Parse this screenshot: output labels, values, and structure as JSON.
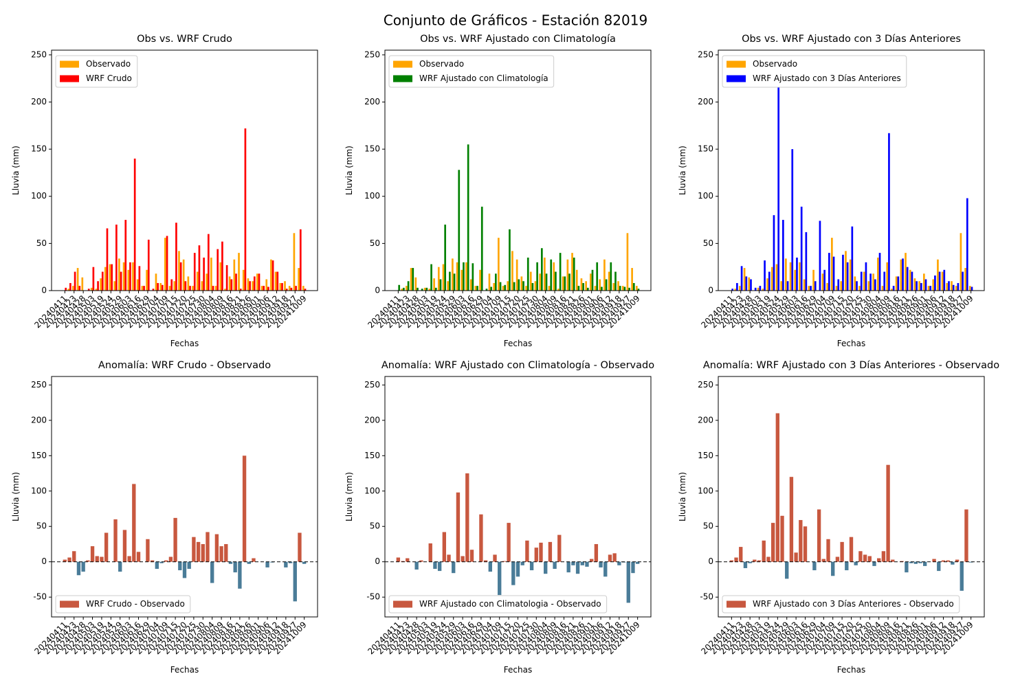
{
  "title": "Conjunto de Gráficos - Estación 82019",
  "chart_data": [
    {
      "type": "bar",
      "title": "Obs vs. WRF Crudo",
      "xlabel": "Fechas",
      "ylabel": "Lluvia (mm)",
      "legend": "upper left",
      "ylim": [
        0,
        255
      ],
      "yticks": [
        0,
        50,
        100,
        150,
        200,
        250
      ],
      "categories": [
        "20240411",
        null,
        "20240423",
        null,
        "20240428",
        null,
        "20240503",
        null,
        "20240519",
        null,
        "20240524",
        null,
        "20240529",
        null,
        "20240603",
        null,
        "20240616",
        null,
        "20240629",
        null,
        "20240704",
        null,
        "20240709",
        null,
        "20240715",
        null,
        "20240720",
        null,
        "20240725",
        null,
        "20240730",
        null,
        "20240804",
        null,
        "20240809",
        null,
        "20240816",
        null,
        "20240821",
        null,
        "20240826",
        null,
        "20240901",
        null,
        "20240906",
        null,
        "20240912",
        null,
        "20240918",
        null,
        "20240927",
        null,
        "20241009"
      ],
      "series": [
        {
          "name": "Observado",
          "color": "#ffa500",
          "values": [
            0,
            2,
            5,
            24,
            14,
            0,
            3,
            2,
            13,
            25,
            28,
            10,
            34,
            30,
            22,
            30,
            12,
            5,
            22,
            0,
            18,
            8,
            56,
            5,
            10,
            42,
            33,
            15,
            5,
            20,
            10,
            18,
            35,
            5,
            30,
            2,
            15,
            33,
            40,
            22,
            13,
            10,
            18,
            5,
            12,
            33,
            20,
            8,
            10,
            5,
            61,
            24,
            5
          ]
        },
        {
          "name": "WRF Crudo",
          "color": "#ff0000",
          "values": [
            3,
            8,
            20,
            5,
            0,
            2,
            25,
            10,
            20,
            66,
            28,
            70,
            20,
            75,
            30,
            140,
            26,
            5,
            54,
            2,
            8,
            6,
            58,
            12,
            72,
            30,
            10,
            5,
            40,
            48,
            35,
            60,
            5,
            44,
            52,
            27,
            12,
            18,
            2,
            172,
            10,
            15,
            18,
            5,
            4,
            32,
            20,
            8,
            2,
            3,
            5,
            65,
            2
          ]
        }
      ]
    },
    {
      "type": "bar",
      "title": "Obs vs. WRF Ajustado con Climatología",
      "xlabel": "Fechas",
      "ylabel": "Lluvia (mm)",
      "legend": "upper left",
      "ylim": [
        0,
        255
      ],
      "yticks": [
        0,
        50,
        100,
        150,
        200,
        250
      ],
      "categories": [
        "20240411",
        null,
        "20240423",
        null,
        "20240428",
        null,
        "20240503",
        null,
        "20240519",
        null,
        "20240524",
        null,
        "20240529",
        null,
        "20240603",
        null,
        "20240616",
        null,
        "20240629",
        null,
        "20240704",
        null,
        "20240709",
        null,
        "20240715",
        null,
        "20240720",
        null,
        "20240725",
        null,
        "20240730",
        null,
        "20240804",
        null,
        "20240809",
        null,
        "20240816",
        null,
        "20240821",
        null,
        "20240826",
        null,
        "20240901",
        null,
        "20240906",
        null,
        "20240912",
        null,
        "20240918",
        null,
        "20240927",
        null,
        "20241009"
      ],
      "series": [
        {
          "name": "Observado",
          "color": "#ffa500",
          "values": [
            0,
            2,
            5,
            24,
            14,
            0,
            3,
            2,
            13,
            25,
            28,
            10,
            34,
            30,
            22,
            30,
            12,
            5,
            22,
            0,
            18,
            8,
            56,
            5,
            10,
            42,
            33,
            15,
            5,
            20,
            10,
            18,
            35,
            5,
            30,
            2,
            15,
            33,
            40,
            22,
            13,
            10,
            18,
            5,
            12,
            33,
            20,
            8,
            10,
            5,
            61,
            24,
            5
          ]
        },
        {
          "name": "WRF Ajustado con Climatología",
          "color": "#008000",
          "values": [
            6,
            3,
            10,
            24,
            3,
            2,
            3,
            28,
            3,
            12,
            70,
            20,
            18,
            128,
            30,
            155,
            29,
            5,
            89,
            2,
            4,
            18,
            9,
            6,
            65,
            9,
            12,
            10,
            35,
            8,
            30,
            45,
            18,
            33,
            20,
            40,
            15,
            18,
            35,
            5,
            8,
            3,
            22,
            30,
            4,
            12,
            30,
            20,
            5,
            4,
            3,
            8,
            2
          ]
        }
      ]
    },
    {
      "type": "bar",
      "title": "Obs vs. WRF Ajustado con 3 Días Anteriores",
      "xlabel": "Fechas",
      "ylabel": "Lluvia (mm)",
      "legend": "upper left",
      "ylim": [
        0,
        255
      ],
      "yticks": [
        0,
        50,
        100,
        150,
        200,
        250
      ],
      "categories": [
        "20240411",
        null,
        "20240423",
        null,
        "20240428",
        null,
        "20240503",
        null,
        "20240519",
        null,
        "20240524",
        null,
        "20240529",
        null,
        "20240603",
        null,
        "20240616",
        null,
        "20240629",
        null,
        "20240704",
        null,
        "20240709",
        null,
        "20240715",
        null,
        "20240720",
        null,
        "20240725",
        null,
        "20240730",
        null,
        "20240804",
        null,
        "20240809",
        null,
        "20240816",
        null,
        "20240821",
        null,
        "20240826",
        null,
        "20240901",
        null,
        "20240906",
        null,
        "20240912",
        null,
        "20240918",
        null,
        "20240927",
        null,
        "20241009"
      ],
      "series": [
        {
          "name": "Observado",
          "color": "#ffa500",
          "values": [
            0,
            2,
            5,
            24,
            14,
            0,
            3,
            2,
            13,
            25,
            28,
            10,
            34,
            30,
            22,
            30,
            12,
            5,
            22,
            0,
            18,
            8,
            56,
            5,
            10,
            42,
            33,
            15,
            5,
            20,
            10,
            18,
            35,
            5,
            30,
            2,
            15,
            33,
            40,
            22,
            13,
            10,
            18,
            5,
            12,
            33,
            20,
            8,
            10,
            5,
            61,
            24,
            5
          ]
        },
        {
          "name": "WRF Ajustado con 3 Días Anteriores",
          "color": "#0000ff",
          "values": [
            2,
            8,
            26,
            15,
            12,
            3,
            5,
            32,
            20,
            80,
            238,
            75,
            10,
            150,
            35,
            89,
            62,
            5,
            10,
            74,
            22,
            40,
            36,
            12,
            38,
            30,
            68,
            10,
            20,
            30,
            18,
            12,
            40,
            20,
            167,
            5,
            15,
            34,
            25,
            20,
            10,
            8,
            12,
            5,
            16,
            20,
            22,
            10,
            6,
            8,
            20,
            98,
            4
          ]
        }
      ]
    },
    {
      "type": "bar",
      "title": "Anomalía: WRF Crudo - Observado",
      "xlabel": "Fechas",
      "ylabel": "Lluvia (mm)",
      "legend": "lower left",
      "ylim": [
        -78,
        262
      ],
      "yticks": [
        -50,
        0,
        50,
        100,
        150,
        200,
        250
      ],
      "zero_line": true,
      "categories": [
        "20240411",
        null,
        "20240423",
        null,
        "20240428",
        null,
        "20240503",
        null,
        "20240519",
        null,
        "20240524",
        null,
        "20240529",
        null,
        "20240603",
        null,
        "20240616",
        null,
        "20240629",
        null,
        "20240704",
        null,
        "20240709",
        null,
        "20240715",
        null,
        "20240720",
        null,
        "20240725",
        null,
        "20240730",
        null,
        "20240804",
        null,
        "20240809",
        null,
        "20240816",
        null,
        "20240821",
        null,
        "20240826",
        null,
        "20240901",
        null,
        "20240906",
        null,
        "20240912",
        null,
        "20240918",
        null,
        "20240927",
        null,
        "20241009"
      ],
      "series": [
        {
          "name": "WRF Crudo - Observado",
          "color": "#c8583f",
          "negative_color": "#4a7c98",
          "values": [
            3,
            6,
            15,
            -19,
            -14,
            2,
            22,
            8,
            7,
            41,
            0,
            60,
            -14,
            45,
            8,
            110,
            14,
            0,
            32,
            2,
            -10,
            -2,
            2,
            7,
            62,
            -12,
            -23,
            -10,
            35,
            28,
            25,
            42,
            -30,
            39,
            22,
            25,
            -3,
            -15,
            -38,
            150,
            -3,
            5,
            0,
            0,
            -8,
            -1,
            0,
            0,
            -8,
            -2,
            -56,
            41,
            -3
          ]
        }
      ]
    },
    {
      "type": "bar",
      "title": "Anomalía: WRF Ajustado con Climatología - Observado",
      "xlabel": "Fechas",
      "ylabel": "Lluvia (mm)",
      "legend": "lower left",
      "ylim": [
        -78,
        262
      ],
      "yticks": [
        -50,
        0,
        50,
        100,
        150,
        200,
        250
      ],
      "zero_line": true,
      "categories": [
        "20240411",
        null,
        "20240423",
        null,
        "20240428",
        null,
        "20240503",
        null,
        "20240519",
        null,
        "20240524",
        null,
        "20240529",
        null,
        "20240603",
        null,
        "20240616",
        null,
        "20240629",
        null,
        "20240704",
        null,
        "20240709",
        null,
        "20240715",
        null,
        "20240720",
        null,
        "20240725",
        null,
        "20240730",
        null,
        "20240804",
        null,
        "20240809",
        null,
        "20240816",
        null,
        "20240821",
        null,
        "20240826",
        null,
        "20240901",
        null,
        "20240906",
        null,
        "20240912",
        null,
        "20240918",
        null,
        "20240927",
        null,
        "20241009"
      ],
      "series": [
        {
          "name": "WRF Ajustado con Climatologia - Observado",
          "color": "#c8583f",
          "negative_color": "#4a7c98",
          "values": [
            6,
            1,
            5,
            0,
            -11,
            2,
            0,
            26,
            -10,
            -13,
            42,
            10,
            -16,
            98,
            8,
            125,
            17,
            0,
            67,
            2,
            -14,
            10,
            -47,
            1,
            55,
            -33,
            -21,
            -5,
            30,
            -12,
            20,
            27,
            -17,
            28,
            -10,
            38,
            0,
            -15,
            -5,
            -17,
            -5,
            -7,
            4,
            25,
            -8,
            -21,
            10,
            12,
            -5,
            -1,
            -58,
            -16,
            -3
          ]
        }
      ]
    },
    {
      "type": "bar",
      "title": "Anomalía: WRF Ajustado con 3 Días Anteriores - Observado",
      "xlabel": "Fechas",
      "ylabel": "Lluvia (mm)",
      "legend": "lower left",
      "ylim": [
        -78,
        262
      ],
      "yticks": [
        -50,
        0,
        50,
        100,
        150,
        200,
        250
      ],
      "zero_line": true,
      "categories": [
        "20240411",
        null,
        "20240423",
        null,
        "20240428",
        null,
        "20240503",
        null,
        "20240519",
        null,
        "20240524",
        null,
        "20240529",
        null,
        "20240603",
        null,
        "20240616",
        null,
        "20240629",
        null,
        "20240704",
        null,
        "20240709",
        null,
        "20240715",
        null,
        "20240720",
        null,
        "20240725",
        null,
        "20240730",
        null,
        "20240804",
        null,
        "20240809",
        null,
        "20240816",
        null,
        "20240821",
        null,
        "20240826",
        null,
        "20240901",
        null,
        "20240906",
        null,
        "20240912",
        null,
        "20240918",
        null,
        "20240927",
        null,
        "20241009"
      ],
      "series": [
        {
          "name": "WRF Ajustado con 3 Días Anteriores - Observado",
          "color": "#c8583f",
          "negative_color": "#4a7c98",
          "values": [
            2,
            6,
            21,
            -9,
            -2,
            3,
            2,
            30,
            7,
            55,
            210,
            65,
            -24,
            120,
            13,
            59,
            50,
            0,
            -12,
            74,
            4,
            32,
            -20,
            7,
            28,
            -12,
            35,
            -5,
            15,
            10,
            8,
            -6,
            5,
            15,
            137,
            3,
            0,
            1,
            -15,
            -2,
            -3,
            -2,
            -6,
            0,
            4,
            -13,
            2,
            2,
            -4,
            3,
            -41,
            74,
            -1
          ]
        }
      ]
    }
  ]
}
